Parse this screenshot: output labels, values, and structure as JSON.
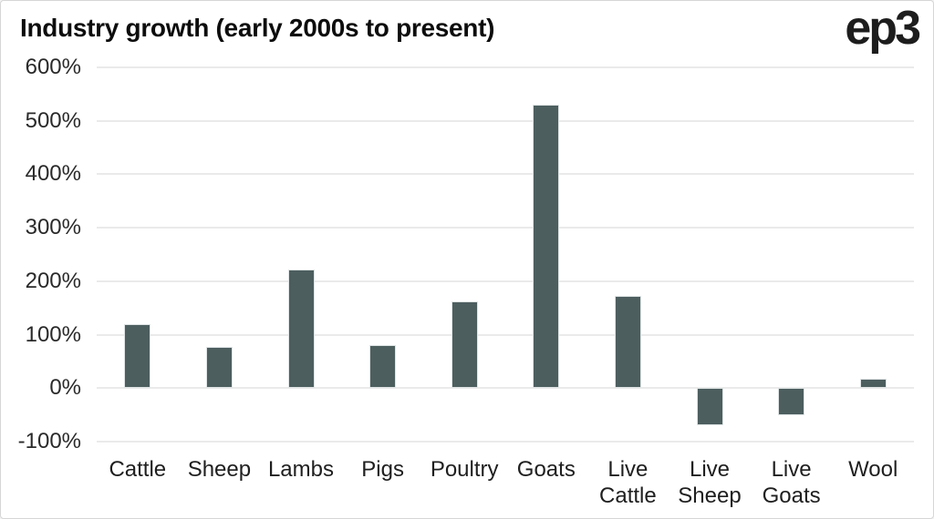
{
  "header": {
    "title": "Industry growth (early 2000s to present)",
    "logo": "ep3"
  },
  "chart_data": {
    "type": "bar",
    "title": "Industry growth (early 2000s to present)",
    "categories": [
      "Cattle",
      "Sheep",
      "Lambs",
      "Pigs",
      "Poultry",
      "Goats",
      "Live\nCattle",
      "Live\nSheep",
      "Live\nGoats",
      "Wool"
    ],
    "values": [
      120,
      77,
      222,
      81,
      162,
      530,
      172,
      -69,
      -51,
      18
    ],
    "unit": "%",
    "xlabel": "",
    "ylabel": "",
    "ylim": [
      -100,
      600
    ],
    "ytick_step": 100,
    "yticks": [
      "600%",
      "500%",
      "400%",
      "300%",
      "200%",
      "100%",
      "0%",
      "-100%"
    ],
    "grid": true,
    "legend": false,
    "bar_color": "#4d5e5f",
    "bar_border_color": "#dfe4e4",
    "grid_color": "#eaeaea",
    "text_color": "#1f1f1f",
    "background": "#ffffff"
  }
}
